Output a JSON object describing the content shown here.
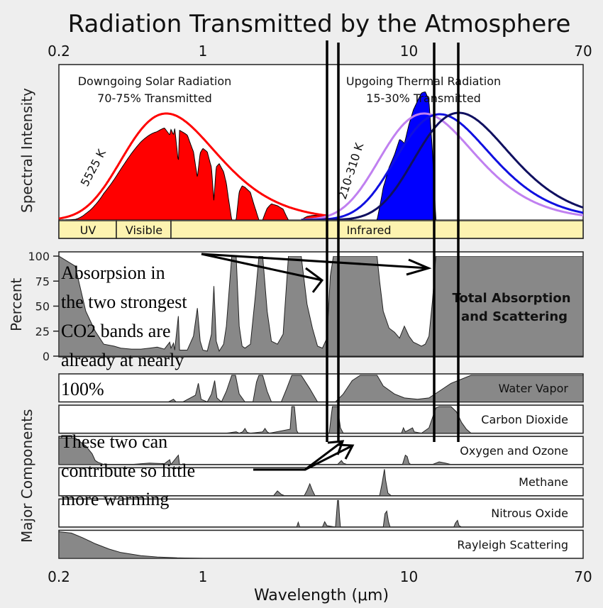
{
  "chart_data": {
    "type": "area",
    "title": "Radiation Transmitted by the Atmosphere",
    "xlabel": "Wavelength (μm)",
    "x_scale": "log",
    "xlim": [
      0.2,
      70
    ],
    "x_ticks": [
      "0.2",
      "1",
      "10",
      "70"
    ],
    "spectral_panel": {
      "ylabel": "Spectral Intensity",
      "solar": {
        "heading": "Downgoing Solar Radiation",
        "subheading": "70-75% Transmitted",
        "temp_label": "5525 K",
        "color": "#ff0000"
      },
      "thermal": {
        "heading": "Upgoing Thermal Radiation",
        "subheading": "15-30% Transmitted",
        "temp_label": "210-310 K",
        "colors": [
          "#c080f0",
          "#1010e0",
          "#101060"
        ]
      },
      "bands": [
        "UV",
        "Visible",
        "Infrared"
      ]
    },
    "absorption_panel": {
      "ylabel": "Percent",
      "yticks": [
        0,
        25,
        50,
        75,
        100
      ],
      "label_line1": "Total Absorption",
      "label_line2": "and Scattering",
      "points": [
        [
          0.2,
          100
        ],
        [
          0.24,
          90
        ],
        [
          0.27,
          45
        ],
        [
          0.3,
          25
        ],
        [
          0.33,
          12
        ],
        [
          0.37,
          10
        ],
        [
          0.4,
          8
        ],
        [
          0.45,
          7
        ],
        [
          0.5,
          7
        ],
        [
          0.55,
          8
        ],
        [
          0.6,
          9
        ],
        [
          0.65,
          7
        ],
        [
          0.69,
          14
        ],
        [
          0.7,
          8
        ],
        [
          0.72,
          13
        ],
        [
          0.73,
          6
        ],
        [
          0.76,
          40
        ],
        [
          0.77,
          6
        ],
        [
          0.8,
          6
        ],
        [
          0.84,
          6
        ],
        [
          0.9,
          20
        ],
        [
          0.94,
          48
        ],
        [
          0.97,
          15
        ],
        [
          1.0,
          6
        ],
        [
          1.05,
          5
        ],
        [
          1.1,
          22
        ],
        [
          1.13,
          70
        ],
        [
          1.16,
          15
        ],
        [
          1.2,
          5
        ],
        [
          1.26,
          12
        ],
        [
          1.3,
          30
        ],
        [
          1.38,
          100
        ],
        [
          1.45,
          100
        ],
        [
          1.5,
          30
        ],
        [
          1.55,
          10
        ],
        [
          1.6,
          8
        ],
        [
          1.7,
          12
        ],
        [
          1.8,
          62
        ],
        [
          1.87,
          100
        ],
        [
          1.95,
          100
        ],
        [
          2.05,
          45
        ],
        [
          2.15,
          15
        ],
        [
          2.3,
          12
        ],
        [
          2.45,
          22
        ],
        [
          2.6,
          100
        ],
        [
          3.0,
          100
        ],
        [
          3.2,
          52
        ],
        [
          3.4,
          28
        ],
        [
          3.6,
          10
        ],
        [
          3.8,
          8
        ],
        [
          4.0,
          18
        ],
        [
          4.15,
          80
        ],
        [
          4.3,
          100
        ],
        [
          4.5,
          100
        ],
        [
          4.7,
          100
        ],
        [
          5.0,
          100
        ],
        [
          6.5,
          100
        ],
        [
          7.0,
          100
        ],
        [
          7.2,
          75
        ],
        [
          7.5,
          45
        ],
        [
          8.0,
          28
        ],
        [
          8.5,
          24
        ],
        [
          9.0,
          18
        ],
        [
          9.5,
          30
        ],
        [
          10.0,
          20
        ],
        [
          10.5,
          14
        ],
        [
          11.0,
          12
        ],
        [
          11.5,
          10
        ],
        [
          12.0,
          12
        ],
        [
          12.5,
          20
        ],
        [
          13.0,
          55
        ],
        [
          13.5,
          100
        ],
        [
          20,
          100
        ],
        [
          70,
          100
        ]
      ]
    },
    "components": [
      {
        "name": "Water Vapor",
        "points": [
          [
            0.2,
            0
          ],
          [
            0.68,
            0
          ],
          [
            0.72,
            10
          ],
          [
            0.74,
            0
          ],
          [
            0.8,
            0
          ],
          [
            0.92,
            25
          ],
          [
            0.95,
            70
          ],
          [
            0.98,
            10
          ],
          [
            1.05,
            0
          ],
          [
            1.1,
            30
          ],
          [
            1.14,
            80
          ],
          [
            1.17,
            15
          ],
          [
            1.23,
            0
          ],
          [
            1.3,
            40
          ],
          [
            1.38,
            100
          ],
          [
            1.44,
            100
          ],
          [
            1.5,
            30
          ],
          [
            1.6,
            0
          ],
          [
            1.75,
            0
          ],
          [
            1.82,
            75
          ],
          [
            1.87,
            100
          ],
          [
            1.95,
            100
          ],
          [
            2.05,
            40
          ],
          [
            2.15,
            0
          ],
          [
            2.4,
            0
          ],
          [
            2.55,
            50
          ],
          [
            2.7,
            100
          ],
          [
            3.0,
            100
          ],
          [
            3.3,
            50
          ],
          [
            3.6,
            0
          ],
          [
            4.4,
            0
          ],
          [
            4.8,
            30
          ],
          [
            5.3,
            80
          ],
          [
            5.8,
            100
          ],
          [
            7.0,
            100
          ],
          [
            7.5,
            60
          ],
          [
            8.5,
            30
          ],
          [
            9.5,
            15
          ],
          [
            11.0,
            10
          ],
          [
            12.5,
            15
          ],
          [
            14,
            40
          ],
          [
            16,
            70
          ],
          [
            20,
            100
          ],
          [
            70,
            100
          ]
        ]
      },
      {
        "name": "Carbon Dioxide",
        "points": [
          [
            0.2,
            0
          ],
          [
            1.3,
            0
          ],
          [
            1.45,
            5
          ],
          [
            1.5,
            0
          ],
          [
            1.56,
            5
          ],
          [
            1.6,
            18
          ],
          [
            1.64,
            3
          ],
          [
            1.7,
            0
          ],
          [
            1.95,
            5
          ],
          [
            2.0,
            18
          ],
          [
            2.05,
            5
          ],
          [
            2.1,
            0
          ],
          [
            2.65,
            15
          ],
          [
            2.7,
            100
          ],
          [
            2.78,
            100
          ],
          [
            2.85,
            10
          ],
          [
            2.9,
            0
          ],
          [
            4.1,
            0
          ],
          [
            4.2,
            70
          ],
          [
            4.25,
            100
          ],
          [
            4.4,
            100
          ],
          [
            4.5,
            100
          ],
          [
            4.65,
            20
          ],
          [
            4.8,
            0
          ],
          [
            9.2,
            0
          ],
          [
            9.4,
            20
          ],
          [
            9.6,
            5
          ],
          [
            10.4,
            20
          ],
          [
            10.6,
            5
          ],
          [
            11.5,
            0
          ],
          [
            12.5,
            20
          ],
          [
            13.5,
            95
          ],
          [
            14,
            100
          ],
          [
            16,
            100
          ],
          [
            17,
            80
          ],
          [
            18,
            40
          ],
          [
            19,
            15
          ],
          [
            20,
            0
          ],
          [
            70,
            0
          ]
        ]
      },
      {
        "name": "Oxygen and Ozone",
        "points": [
          [
            0.2,
            100
          ],
          [
            0.24,
            100
          ],
          [
            0.27,
            70
          ],
          [
            0.29,
            40
          ],
          [
            0.3,
            15
          ],
          [
            0.31,
            8
          ],
          [
            0.33,
            0
          ],
          [
            0.45,
            0
          ],
          [
            0.55,
            5
          ],
          [
            0.65,
            3
          ],
          [
            0.69,
            18
          ],
          [
            0.7,
            0
          ],
          [
            0.76,
            35
          ],
          [
            0.77,
            0
          ],
          [
            4.5,
            0
          ],
          [
            4.7,
            15
          ],
          [
            4.8,
            5
          ],
          [
            5.0,
            0
          ],
          [
            9.3,
            0
          ],
          [
            9.6,
            35
          ],
          [
            9.8,
            30
          ],
          [
            10.0,
            5
          ],
          [
            10.2,
            0
          ],
          [
            13,
            0
          ],
          [
            14,
            10
          ],
          [
            15,
            5
          ],
          [
            16,
            0
          ],
          [
            70,
            0
          ]
        ]
      },
      {
        "name": "Methane",
        "points": [
          [
            0.2,
            0
          ],
          [
            2.2,
            0
          ],
          [
            2.3,
            18
          ],
          [
            2.4,
            5
          ],
          [
            2.5,
            0
          ],
          [
            3.1,
            0
          ],
          [
            3.2,
            20
          ],
          [
            3.3,
            45
          ],
          [
            3.4,
            20
          ],
          [
            3.5,
            0
          ],
          [
            7.2,
            0
          ],
          [
            7.4,
            45
          ],
          [
            7.6,
            100
          ],
          [
            7.7,
            60
          ],
          [
            7.9,
            10
          ],
          [
            8.2,
            0
          ],
          [
            70,
            0
          ]
        ]
      },
      {
        "name": "Nitrous Oxide",
        "points": [
          [
            0.2,
            0
          ],
          [
            2.85,
            0
          ],
          [
            2.9,
            18
          ],
          [
            2.95,
            0
          ],
          [
            3.8,
            0
          ],
          [
            3.9,
            20
          ],
          [
            4.0,
            5
          ],
          [
            4.4,
            0
          ],
          [
            4.45,
            50
          ],
          [
            4.5,
            100
          ],
          [
            4.55,
            100
          ],
          [
            4.6,
            40
          ],
          [
            4.65,
            0
          ],
          [
            7.5,
            0
          ],
          [
            7.65,
            50
          ],
          [
            7.8,
            60
          ],
          [
            7.95,
            20
          ],
          [
            8.1,
            0
          ],
          [
            16.5,
            0
          ],
          [
            16.8,
            15
          ],
          [
            17.2,
            25
          ],
          [
            17.5,
            5
          ],
          [
            18,
            0
          ],
          [
            70,
            0
          ]
        ]
      },
      {
        "name": "Rayleigh Scattering",
        "points": [
          [
            0.2,
            100
          ],
          [
            0.23,
            95
          ],
          [
            0.26,
            78
          ],
          [
            0.3,
            55
          ],
          [
            0.35,
            35
          ],
          [
            0.4,
            22
          ],
          [
            0.5,
            10
          ],
          [
            0.6,
            5
          ],
          [
            0.75,
            2
          ],
          [
            1.0,
            0
          ],
          [
            70,
            0
          ]
        ]
      }
    ],
    "component_axis_label": "Major Components"
  },
  "annotations": {
    "absorption_note": [
      "Absorpsion in",
      "the two strongest",
      "CO2 bands are",
      "already at nearly",
      "100%"
    ],
    "warming_note": [
      "These two can",
      "contribute so little",
      "more warming"
    ]
  }
}
